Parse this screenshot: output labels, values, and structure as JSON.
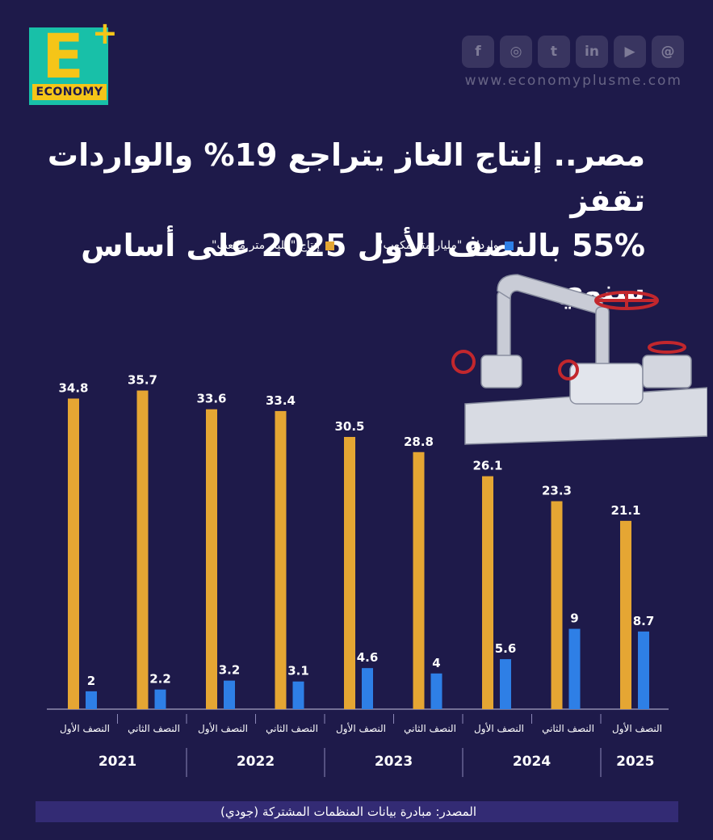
{
  "brand": {
    "logo_letter": "E",
    "logo_plus": "+",
    "logo_word": "ECONOMY",
    "website": "www.economyplusme.com"
  },
  "socials": [
    {
      "icon": "facebook-icon",
      "glyph": "f"
    },
    {
      "icon": "instagram-icon",
      "glyph": "◎"
    },
    {
      "icon": "twitter-icon",
      "glyph": "t"
    },
    {
      "icon": "linkedin-icon",
      "glyph": "in"
    },
    {
      "icon": "youtube-icon",
      "glyph": "▶"
    },
    {
      "icon": "threads-icon",
      "glyph": "@"
    }
  ],
  "title": {
    "line1": "مصر.. إنتاج الغاز يتراجع 19% والواردات تقفز",
    "line2": "55% بالنصف الأول 2025 على أساس سنوي"
  },
  "legend": {
    "imports": "واردات \"مليار متر مكعب\"",
    "production": "إنتاج \"مليار متر مكعب\""
  },
  "colors": {
    "production": "#e5a633",
    "imports": "#2e7fe6",
    "background": "#1e1a4a"
  },
  "chart_data": {
    "type": "bar",
    "categories": [
      "النصف الأول",
      "النصف الثاني",
      "النصف الأول",
      "النصف الثاني",
      "النصف الأول",
      "النصف الثاني",
      "النصف الأول",
      "النصف الثاني",
      "النصف الأول"
    ],
    "years": [
      "2021",
      "2022",
      "2023",
      "2024",
      "2025"
    ],
    "year_groups": [
      {
        "year": "2021",
        "halves": 2
      },
      {
        "year": "2022",
        "halves": 2
      },
      {
        "year": "2023",
        "halves": 2
      },
      {
        "year": "2024",
        "halves": 2
      },
      {
        "year": "2025",
        "halves": 1
      }
    ],
    "series": [
      {
        "name": "إنتاج \"مليار متر مكعب\"",
        "values": [
          34.8,
          35.7,
          33.6,
          33.4,
          30.5,
          28.8,
          26.1,
          23.3,
          21.1
        ]
      },
      {
        "name": "واردات \"مليار متر مكعب\"",
        "values": [
          2,
          2.2,
          3.2,
          3.1,
          4.6,
          4,
          5.6,
          9,
          8.7
        ]
      }
    ],
    "ylim": [
      0,
      40
    ],
    "title": "مصر.. إنتاج الغاز يتراجع 19% والواردات تقفز 55% بالنصف الأول 2025 على أساس سنوي"
  },
  "source": "المصدر: مبادرة بيانات المنظمات المشتركة (جودي)"
}
